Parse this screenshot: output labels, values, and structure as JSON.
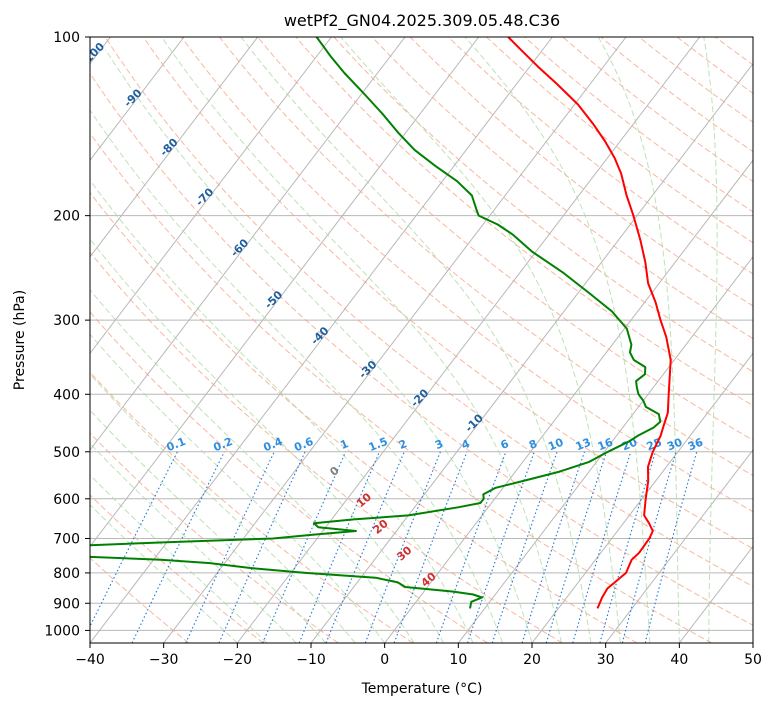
{
  "chart_data": {
    "type": "skew-t",
    "title": "wetPf2_GN04.2025.309.05.48.C36",
    "xlabel": "Temperature (°C)",
    "ylabel": "Pressure (hPa)",
    "xlim": [
      -40,
      50
    ],
    "ylim": [
      1050,
      100
    ],
    "x_ticks": [
      "−40",
      "−30",
      "−20",
      "−10",
      "0",
      "10",
      "20",
      "30",
      "40",
      "50"
    ],
    "y_ticks": [
      {
        "p": 100,
        "label": "100"
      },
      {
        "p": 200,
        "label": "200"
      },
      {
        "p": 300,
        "label": "300"
      },
      {
        "p": 400,
        "label": "400"
      },
      {
        "p": 500,
        "label": "500"
      },
      {
        "p": 600,
        "label": "600"
      },
      {
        "p": 700,
        "label": "700"
      },
      {
        "p": 800,
        "label": "800"
      },
      {
        "p": 900,
        "label": "900"
      },
      {
        "p": 1000,
        "label": "1000"
      }
    ],
    "series": [
      {
        "name": "temperature",
        "color": "#ff0000",
        "points": [
          [
            918,
            25.3
          ],
          [
            880,
            24.8
          ],
          [
            850,
            24.6
          ],
          [
            800,
            25.5
          ],
          [
            760,
            24.9
          ],
          [
            740,
            25.2
          ],
          [
            700,
            25.1
          ],
          [
            680,
            24.8
          ],
          [
            660,
            23.5
          ],
          [
            640,
            22.0
          ],
          [
            600,
            20.5
          ],
          [
            560,
            19.0
          ],
          [
            530,
            17.5
          ],
          [
            500,
            16.6
          ],
          [
            470,
            16.0
          ],
          [
            450,
            15.3
          ],
          [
            430,
            14.6
          ],
          [
            400,
            12.8
          ],
          [
            350,
            9.5
          ],
          [
            320,
            6.5
          ],
          [
            300,
            4.0
          ],
          [
            280,
            1.5
          ],
          [
            260,
            -1.5
          ],
          [
            240,
            -4.0
          ],
          [
            220,
            -7.0
          ],
          [
            200,
            -10.5
          ],
          [
            185,
            -13.5
          ],
          [
            170,
            -16.5
          ],
          [
            160,
            -19.0
          ],
          [
            150,
            -22.0
          ],
          [
            140,
            -25.5
          ],
          [
            130,
            -29.5
          ],
          [
            120,
            -34.5
          ],
          [
            112,
            -39.0
          ],
          [
            105,
            -43.0
          ],
          [
            100,
            -46.0
          ]
        ]
      },
      {
        "name": "dewpoint",
        "color": "#008000",
        "points": [
          [
            918,
            8.0
          ],
          [
            895,
            7.5
          ],
          [
            880,
            8.5
          ],
          [
            870,
            7.0
          ],
          [
            860,
            4.0
          ],
          [
            845,
            -3.0
          ],
          [
            830,
            -4.5
          ],
          [
            815,
            -8.0
          ],
          [
            800,
            -18.0
          ],
          [
            785,
            -26.0
          ],
          [
            770,
            -32.0
          ],
          [
            760,
            -39.0
          ],
          [
            745,
            -57.0
          ],
          [
            735,
            -57.0
          ],
          [
            720,
            -52.0
          ],
          [
            710,
            -40.0
          ],
          [
            700,
            -26.0
          ],
          [
            690,
            -21.0
          ],
          [
            680,
            -15.5
          ],
          [
            670,
            -21.0
          ],
          [
            660,
            -22.0
          ],
          [
            650,
            -17.0
          ],
          [
            640,
            -10.0
          ],
          [
            620,
            -4.0
          ],
          [
            610,
            -1.5
          ],
          [
            600,
            -1.5
          ],
          [
            590,
            -2.0
          ],
          [
            575,
            -1.0
          ],
          [
            560,
            2.0
          ],
          [
            540,
            6.0
          ],
          [
            520,
            9.0
          ],
          [
            500,
            10.5
          ],
          [
            480,
            12.3
          ],
          [
            470,
            12.9
          ],
          [
            455,
            14.2
          ],
          [
            445,
            14.5
          ],
          [
            432,
            13.5
          ],
          [
            420,
            11.0
          ],
          [
            410,
            10.0
          ],
          [
            400,
            8.7
          ],
          [
            390,
            7.8
          ],
          [
            380,
            7.0
          ],
          [
            370,
            7.5
          ],
          [
            360,
            6.8
          ],
          [
            350,
            4.5
          ],
          [
            340,
            3.2
          ],
          [
            330,
            2.6
          ],
          [
            310,
            0.3
          ],
          [
            290,
            -3.5
          ],
          [
            270,
            -8.5
          ],
          [
            250,
            -14.0
          ],
          [
            230,
            -20.5
          ],
          [
            215,
            -25.0
          ],
          [
            207,
            -28.0
          ],
          [
            200,
            -31.5
          ],
          [
            195,
            -32.5
          ],
          [
            185,
            -34.5
          ],
          [
            175,
            -38.0
          ],
          [
            165,
            -42.5
          ],
          [
            155,
            -47.0
          ],
          [
            145,
            -51.0
          ],
          [
            135,
            -55.0
          ],
          [
            125,
            -59.5
          ],
          [
            115,
            -64.5
          ],
          [
            108,
            -68.0
          ],
          [
            100,
            -72.0
          ]
        ]
      }
    ],
    "dry_adiabat_labels": [
      "-100",
      "-90",
      "-80",
      "-70",
      "-60",
      "-50",
      "-40",
      "-30",
      "-20",
      "-10"
    ],
    "mixing_ratio_labels": [
      "0.1",
      "0.2",
      "0.4",
      "0.6",
      "1",
      "1.5",
      "2",
      "3",
      "4",
      "6",
      "8",
      "10",
      "13",
      "16",
      "20",
      "25",
      "30",
      "36"
    ],
    "moist_adiabat_labels": [
      "0",
      "10",
      "20",
      "30",
      "40"
    ],
    "colors": {
      "isotherm": "#b8b8b8",
      "isobar": "#b8b8b8",
      "dry_adiabat": "#f4a082",
      "moist_adiabat": "#a8d8a0",
      "mixing_ratio": "#1f77d4",
      "dry_label": "#1f5f9f",
      "mixing_label": "#2f8fdf",
      "moist_label": "#d03030",
      "moist_label_zero": "#808080"
    }
  }
}
